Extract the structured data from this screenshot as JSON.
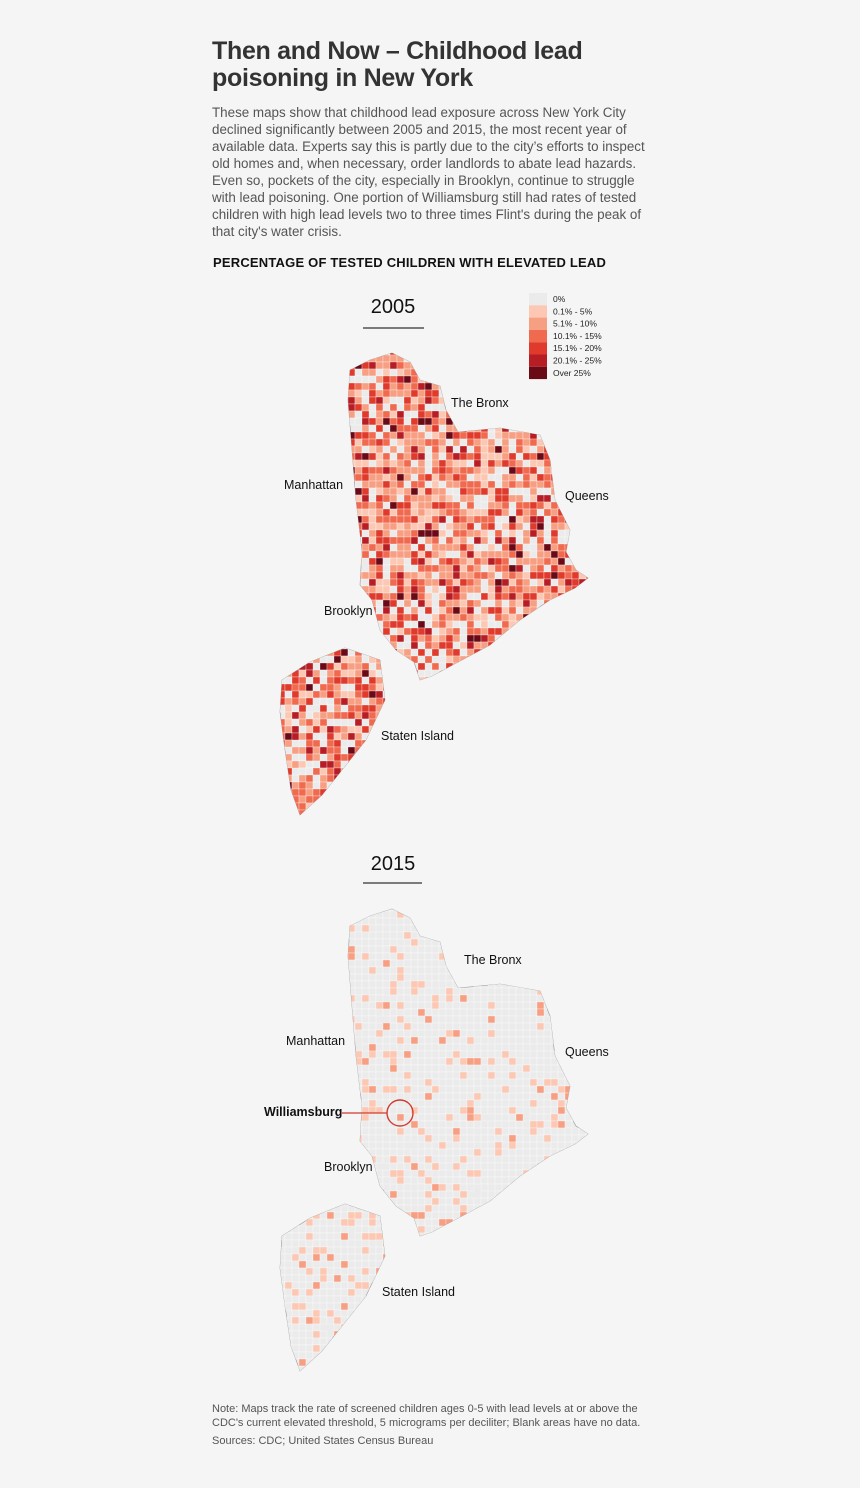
{
  "header": {
    "title": "Then and Now – Childhood lead poisoning in New York",
    "description": "These maps show that childhood lead exposure across New York City declined significantly between 2005 and 2015, the most recent year of available data. Experts say this is partly due to the city’s efforts to inspect old homes and, when necessary, order landlords to abate lead hazards. Even so, pockets of the city, especially in Brooklyn, continue to struggle with lead poisoning.  One portion of Williamsburg still had rates of tested children with high lead levels two to three times Flint's during the peak of that city's water crisis."
  },
  "subtitle": "PERCENTAGE OF TESTED CHILDREN WITH ELEVATED LEAD",
  "legend": {
    "items": [
      {
        "label": "0%",
        "color": "#ebebeb"
      },
      {
        "label": "0.1% - 5%",
        "color": "#fcc8b3"
      },
      {
        "label": "5.1% - 10%",
        "color": "#f79f82"
      },
      {
        "label": "10.1% - 15%",
        "color": "#f06a4f"
      },
      {
        "label": "15.1% - 20%",
        "color": "#df3a2c"
      },
      {
        "label": "20.1% - 25%",
        "color": "#b71d24"
      },
      {
        "label": "Over 25%",
        "color": "#6b0a17"
      }
    ]
  },
  "maps": [
    {
      "year": "2005",
      "labels": [
        "The Bronx",
        "Manhattan",
        "Queens",
        "Brooklyn",
        "Staten Island"
      ]
    },
    {
      "year": "2015",
      "labels": [
        "The Bronx",
        "Manhattan",
        "Queens",
        "Williamsburg",
        "Brooklyn",
        "Staten Island"
      ]
    }
  ],
  "footer": {
    "note": "Note: Maps track the rate of screened children ages 0-5 with lead levels at or above the CDC's current elevated threshold, 5 micrograms per deciliter; Blank areas have no data.",
    "sources": "Sources: CDC; United States Census Bureau"
  }
}
